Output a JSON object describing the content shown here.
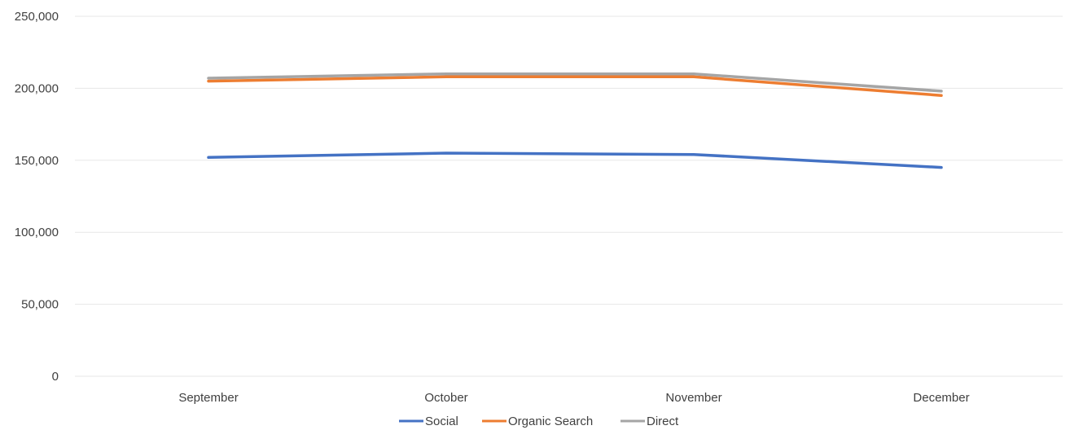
{
  "chart_data": {
    "type": "line",
    "categories": [
      "September",
      "October",
      "November",
      "December"
    ],
    "series": [
      {
        "name": "Social",
        "values": [
          152000,
          155000,
          154000,
          145000
        ],
        "color": "#4472C4"
      },
      {
        "name": "Organic Search",
        "values": [
          205000,
          208000,
          208000,
          195000
        ],
        "color": "#ED7D31"
      },
      {
        "name": "Direct",
        "values": [
          207000,
          210000,
          210000,
          198000
        ],
        "color": "#A5A5A5"
      }
    ],
    "ylim": [
      0,
      250000
    ],
    "yticks": [
      0,
      50000,
      100000,
      150000,
      200000,
      250000
    ],
    "ytick_labels": [
      "0",
      "50,000",
      "100,000",
      "150,000",
      "200,000",
      "250,000"
    ],
    "grid": true,
    "gridline_color": "#E7E7E7",
    "legend_position": "bottom"
  }
}
